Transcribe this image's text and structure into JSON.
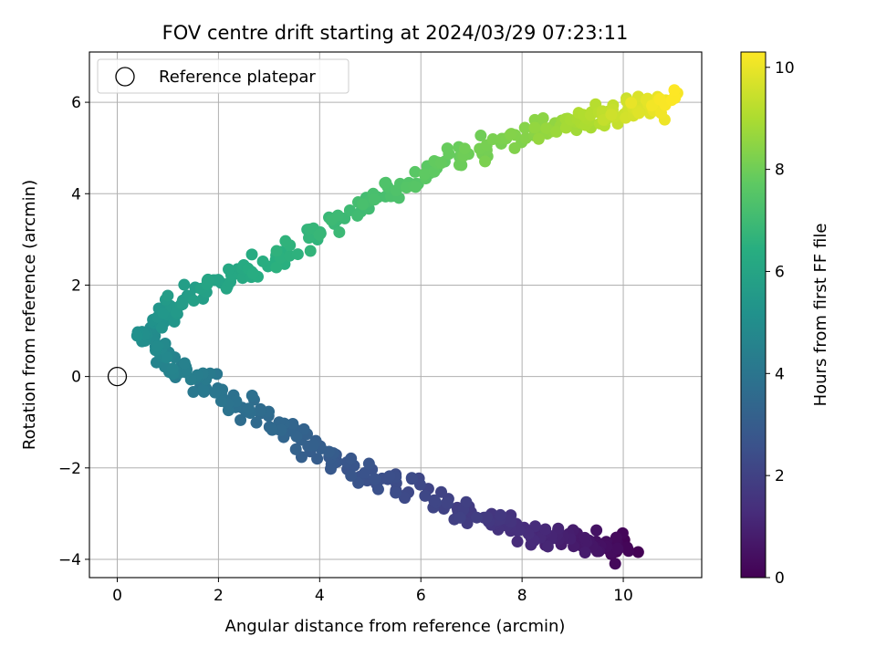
{
  "chart_data": {
    "type": "scatter",
    "title": "FOV centre drift starting at 2024/03/29 07:23:11",
    "xlabel": "Angular distance from reference (arcmin)",
    "ylabel": "Rotation from reference (arcmin)",
    "xlim": [
      -0.55,
      11.55
    ],
    "ylim": [
      -4.4,
      7.1
    ],
    "xticks": [
      0,
      2,
      4,
      6,
      8,
      10
    ],
    "yticks": [
      -4,
      -2,
      0,
      2,
      4,
      6
    ],
    "grid": true,
    "legend": {
      "position": "top-left",
      "label": "Reference platepar"
    },
    "reference_point": {
      "x": 0,
      "y": 0
    },
    "colorbar": {
      "label": "Hours from first FF file",
      "colormap": "viridis",
      "range": [
        0,
        10.3
      ],
      "ticks": [
        0,
        2,
        4,
        6,
        8,
        10
      ]
    },
    "trend": [
      {
        "hours": 0.0,
        "x": 10.1,
        "y": -3.7
      },
      {
        "hours": 0.5,
        "x": 9.5,
        "y": -3.65
      },
      {
        "hours": 1.0,
        "x": 8.6,
        "y": -3.5
      },
      {
        "hours": 1.5,
        "x": 7.7,
        "y": -3.25
      },
      {
        "hours": 2.0,
        "x": 6.6,
        "y": -2.85
      },
      {
        "hours": 2.5,
        "x": 5.2,
        "y": -2.2
      },
      {
        "hours": 3.0,
        "x": 4.0,
        "y": -1.65
      },
      {
        "hours": 3.5,
        "x": 3.0,
        "y": -0.9
      },
      {
        "hours": 4.0,
        "x": 2.0,
        "y": -0.3
      },
      {
        "hours": 4.5,
        "x": 1.1,
        "y": 0.2
      },
      {
        "hours": 5.0,
        "x": 0.6,
        "y": 0.9
      },
      {
        "hours": 5.5,
        "x": 1.1,
        "y": 1.6
      },
      {
        "hours": 6.0,
        "x": 2.0,
        "y": 2.1
      },
      {
        "hours": 6.5,
        "x": 3.2,
        "y": 2.6
      },
      {
        "hours": 7.0,
        "x": 4.6,
        "y": 3.6
      },
      {
        "hours": 7.5,
        "x": 5.8,
        "y": 4.3
      },
      {
        "hours": 8.0,
        "x": 7.0,
        "y": 4.9
      },
      {
        "hours": 8.5,
        "x": 8.4,
        "y": 5.4
      },
      {
        "hours": 9.0,
        "x": 9.2,
        "y": 5.6
      },
      {
        "hours": 9.5,
        "x": 10.0,
        "y": 5.8
      },
      {
        "hours": 10.3,
        "x": 11.0,
        "y": 6.1
      }
    ],
    "series": [
      {
        "name": "Hours from first FF file",
        "points_per_hour": 50,
        "jitter": 0.13
      }
    ]
  }
}
